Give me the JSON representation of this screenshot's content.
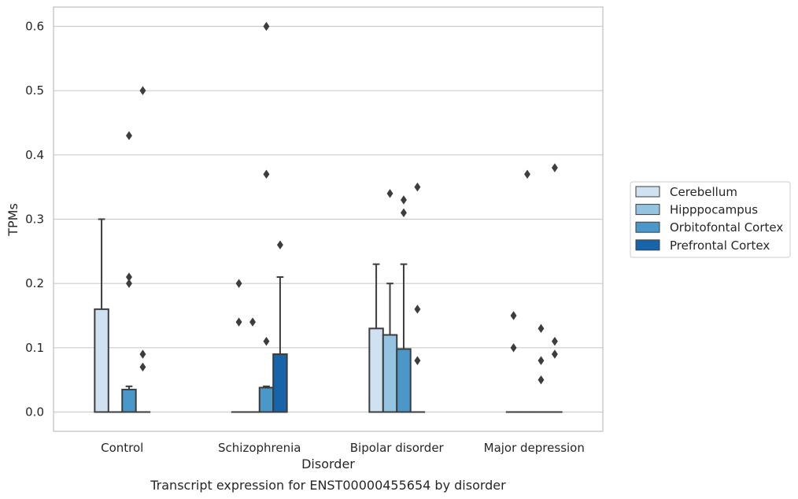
{
  "chart_data": {
    "type": "box",
    "caption": "Transcript expression for ENST00000455654 by disorder",
    "xlabel": "Disorder",
    "ylabel": "TPMs",
    "ylim": [
      -0.03,
      0.63
    ],
    "yticks": [
      0.0,
      0.1,
      0.2,
      0.3,
      0.4,
      0.5,
      0.6
    ],
    "ytick_labels": [
      "0.0",
      "0.1",
      "0.2",
      "0.3",
      "0.4",
      "0.5",
      "0.6"
    ],
    "grid": true,
    "legend_position": "right",
    "categories": [
      "Control",
      "Schizophrenia",
      "Bipolar disorder",
      "Major depression"
    ],
    "series": [
      {
        "name": "Cerebellum",
        "color": "#d0e1f2",
        "boxes": [
          {
            "q1": 0.0,
            "median": 0.0,
            "q3": 0.16,
            "whisker_low": 0.0,
            "whisker_high": 0.3,
            "outliers": []
          },
          {
            "q1": 0.0,
            "median": 0.0,
            "q3": 0.0,
            "whisker_low": 0.0,
            "whisker_high": 0.0,
            "outliers": [
              0.2,
              0.14
            ]
          },
          {
            "q1": 0.0,
            "median": 0.0,
            "q3": 0.13,
            "whisker_low": 0.0,
            "whisker_high": 0.23,
            "outliers": []
          },
          {
            "q1": 0.0,
            "median": 0.0,
            "q3": 0.0,
            "whisker_low": 0.0,
            "whisker_high": 0.0,
            "outliers": [
              0.15,
              0.1
            ]
          }
        ]
      },
      {
        "name": "Hipppocampus",
        "color": "#94c4df",
        "boxes": [
          {
            "q1": 0.0,
            "median": 0.0,
            "q3": 0.0,
            "whisker_low": 0.0,
            "whisker_high": 0.0,
            "outliers": []
          },
          {
            "q1": 0.0,
            "median": 0.0,
            "q3": 0.0,
            "whisker_low": 0.0,
            "whisker_high": 0.0,
            "outliers": [
              0.14
            ]
          },
          {
            "q1": 0.0,
            "median": 0.0,
            "q3": 0.12,
            "whisker_low": 0.0,
            "whisker_high": 0.2,
            "outliers": [
              0.34
            ]
          },
          {
            "q1": 0.0,
            "median": 0.0,
            "q3": 0.0,
            "whisker_low": 0.0,
            "whisker_high": 0.0,
            "outliers": [
              0.37
            ]
          }
        ]
      },
      {
        "name": "Orbitofontal Cortex",
        "color": "#4a98c9",
        "boxes": [
          {
            "q1": 0.0,
            "median": 0.0,
            "q3": 0.035,
            "whisker_low": 0.0,
            "whisker_high": 0.04,
            "outliers": [
              0.43,
              0.21,
              0.2
            ]
          },
          {
            "q1": 0.0,
            "median": 0.0,
            "q3": 0.038,
            "whisker_low": 0.0,
            "whisker_high": 0.04,
            "outliers": [
              0.6,
              0.37,
              0.11
            ]
          },
          {
            "q1": 0.0,
            "median": 0.0,
            "q3": 0.098,
            "whisker_low": 0.0,
            "whisker_high": 0.23,
            "outliers": [
              0.33,
              0.31
            ]
          },
          {
            "q1": 0.0,
            "median": 0.0,
            "q3": 0.0,
            "whisker_low": 0.0,
            "whisker_high": 0.0,
            "outliers": [
              0.13,
              0.08,
              0.05
            ]
          }
        ]
      },
      {
        "name": "Prefrontal Cortex",
        "color": "#1764ab",
        "boxes": [
          {
            "q1": 0.0,
            "median": 0.0,
            "q3": 0.0,
            "whisker_low": 0.0,
            "whisker_high": 0.0,
            "outliers": [
              0.5,
              0.09,
              0.07
            ]
          },
          {
            "q1": 0.0,
            "median": 0.0,
            "q3": 0.09,
            "whisker_low": 0.0,
            "whisker_high": 0.21,
            "outliers": [
              0.26
            ]
          },
          {
            "q1": 0.0,
            "median": 0.0,
            "q3": 0.0,
            "whisker_low": 0.0,
            "whisker_high": 0.0,
            "outliers": [
              0.35,
              0.16,
              0.08
            ]
          },
          {
            "q1": 0.0,
            "median": 0.0,
            "q3": 0.0,
            "whisker_low": 0.0,
            "whisker_high": 0.0,
            "outliers": [
              0.38,
              0.11,
              0.09
            ]
          }
        ]
      }
    ],
    "colors": {
      "edge": "#3d3d3d",
      "grid": "#cccccc",
      "frame": "#cccccc",
      "text": "#262626"
    }
  }
}
